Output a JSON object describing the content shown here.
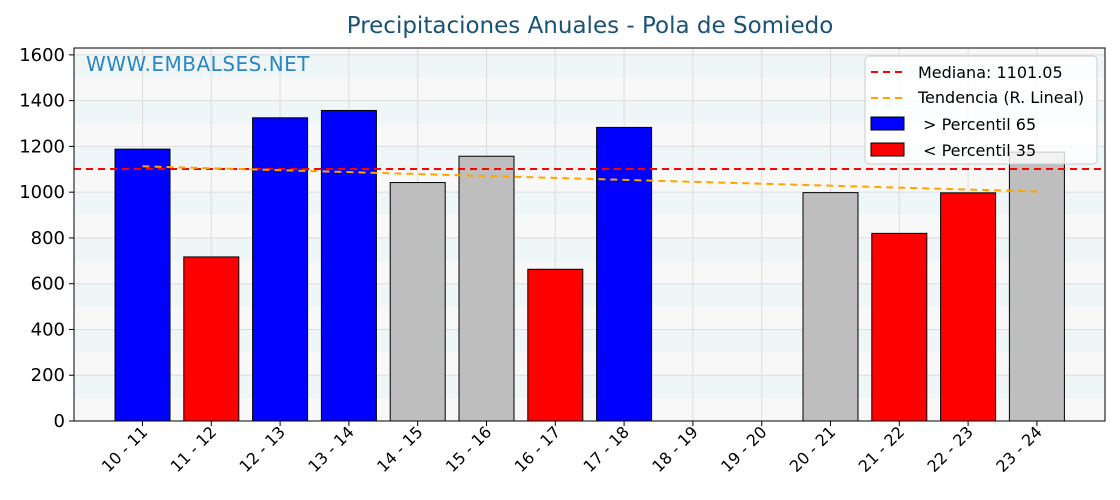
{
  "chart_data": {
    "type": "bar",
    "title": "Precipitaciones Anuales - Pola de Somiedo",
    "watermark": "WWW.EMBALSES.NET",
    "xlabel": "",
    "ylabel": "",
    "ylim": [
      0,
      1630
    ],
    "yticks": [
      0,
      200,
      400,
      600,
      800,
      1000,
      1200,
      1400,
      1600
    ],
    "categories": [
      "10 - 11",
      "11 - 12",
      "12 - 13",
      "13 - 14",
      "14 - 15",
      "15 - 16",
      "16 - 17",
      "17 - 18",
      "18 - 19",
      "19 - 20",
      "20 - 21",
      "21 - 22",
      "22 - 23",
      "23 - 24"
    ],
    "values": [
      1188,
      717,
      1325,
      1357,
      1042,
      1157,
      663,
      1283,
      0,
      0,
      998,
      820,
      997,
      1175
    ],
    "bar_class": [
      "high",
      "low",
      "high",
      "high",
      "mid",
      "mid",
      "low",
      "high",
      "none",
      "none",
      "mid",
      "low",
      "low",
      "mid"
    ],
    "median": 1101.05,
    "trend": [
      1113,
      1003
    ],
    "grid": true,
    "legend_position": "top-right",
    "legend": {
      "median_label": "Mediana: 1101.05",
      "trend_label": "Tendencia (R. Lineal)",
      "high_label": " > Percentil 65",
      "low_label": " < Percentil 35"
    },
    "colors": {
      "high": "#0000ff",
      "low": "#ff0000",
      "mid": "#bebebe",
      "median_line": "#ff0000",
      "trend_line": "#ffa500",
      "band": "#eef6f8",
      "title": "#1a5276",
      "watermark": "#2e86c1"
    }
  }
}
